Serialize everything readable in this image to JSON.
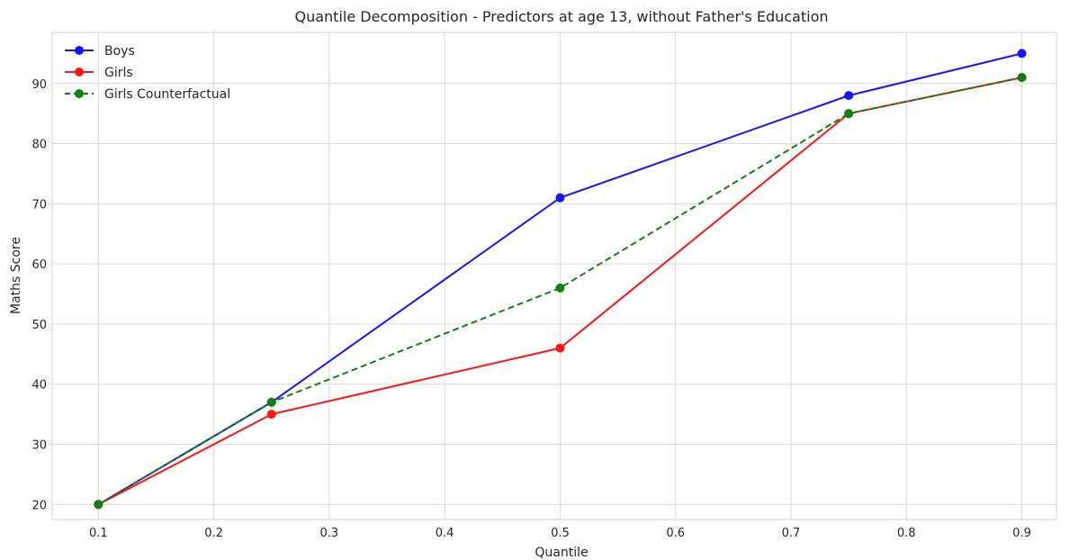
{
  "chart_data": {
    "type": "line",
    "title": "Quantile Decomposition - Predictors at age 13, without Father's Education",
    "xlabel": "Quantile",
    "ylabel": "Maths Score",
    "xlim": [
      0.06,
      0.93
    ],
    "ylim": [
      17.5,
      98.5
    ],
    "x_ticks": [
      "0.1",
      "0.2",
      "0.3",
      "0.4",
      "0.5",
      "0.6",
      "0.7",
      "0.8",
      "0.9"
    ],
    "y_ticks": [
      "20",
      "30",
      "40",
      "50",
      "60",
      "70",
      "80",
      "90"
    ],
    "grid": true,
    "legend_position": "top-left",
    "x": [
      0.1,
      0.25,
      0.5,
      0.75,
      0.9
    ],
    "series": [
      {
        "name": "Boys",
        "values": [
          20,
          37,
          71,
          88,
          95
        ],
        "color": "#1414ff",
        "dash": "solid"
      },
      {
        "name": "Girls",
        "values": [
          20,
          35,
          46,
          85,
          91
        ],
        "color": "#ff1414",
        "dash": "solid"
      },
      {
        "name": "Girls Counterfactual",
        "values": [
          20,
          37,
          56,
          85,
          91
        ],
        "color": "#108010",
        "dash": "dashed"
      }
    ]
  }
}
